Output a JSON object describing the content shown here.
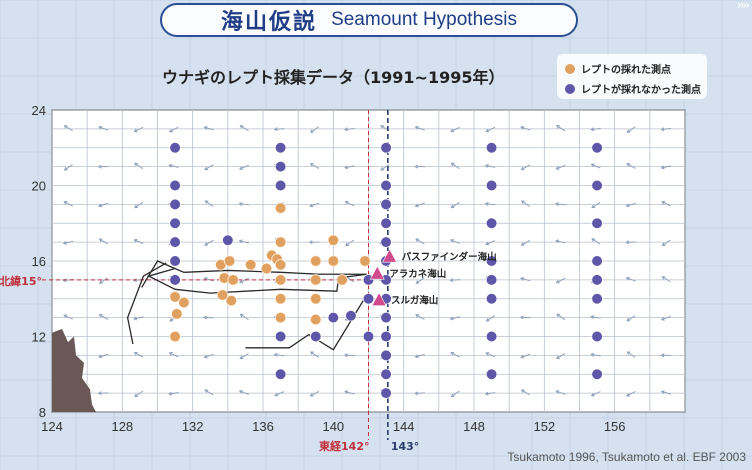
{
  "title": {
    "jp": "海山仮説",
    "en": "Seamount Hypothesis"
  },
  "chart_title": "ウナギのレプト採集データ（1991~1995年）",
  "legend": [
    {
      "label": "レプトの採れた測点",
      "color": "#e0a060"
    },
    {
      "label": "レプトが採れなかった測点",
      "color": "#5e56a8"
    }
  ],
  "credit": "Tsukamoto 1996, Tsukamoto et al. EBF 2003",
  "chart_data": {
    "type": "scatter",
    "xlim": [
      124,
      160
    ],
    "ylim": [
      8,
      24
    ],
    "xticks": [
      "124",
      "128",
      "132",
      "136",
      "140",
      "144",
      "148",
      "152",
      "156"
    ],
    "yticks": [
      "8",
      "12",
      "16",
      "20",
      "24"
    ],
    "ref_lines": {
      "lat": {
        "value": 15,
        "label": "北緯15°",
        "color": "#c0303a"
      },
      "lon142": {
        "value": 142,
        "label": "東経142°",
        "color": "#c0303a"
      },
      "lon143": {
        "value": 143.1,
        "label": "143°",
        "color": "#2a3a6a"
      }
    },
    "series": [
      {
        "name": "レプトの採れた測点",
        "color": "#e0a060",
        "points": [
          [
            131,
            14.1
          ],
          [
            131.5,
            13.8
          ],
          [
            131.1,
            13.2
          ],
          [
            131,
            12
          ],
          [
            133.6,
            15.8
          ],
          [
            134.1,
            16
          ],
          [
            133.8,
            15.1
          ],
          [
            134.3,
            15
          ],
          [
            133.7,
            14.2
          ],
          [
            134.2,
            13.9
          ],
          [
            135.3,
            15.8
          ],
          [
            136.2,
            15.6
          ],
          [
            136.5,
            16.3
          ],
          [
            136.8,
            16.1
          ],
          [
            137,
            15.8
          ],
          [
            137,
            18.8
          ],
          [
            137,
            17
          ],
          [
            137,
            15
          ],
          [
            137,
            14
          ],
          [
            137,
            13
          ],
          [
            139,
            16
          ],
          [
            139,
            15
          ],
          [
            139,
            14
          ],
          [
            139,
            12.9
          ],
          [
            139,
            12
          ],
          [
            140,
            17.1
          ],
          [
            140,
            16
          ],
          [
            140.5,
            15
          ],
          [
            141.8,
            16
          ]
        ]
      },
      {
        "name": "レプトが採れなかった測点",
        "color": "#5e56a8",
        "points": [
          [
            131,
            22
          ],
          [
            131,
            20
          ],
          [
            131,
            19
          ],
          [
            131,
            18
          ],
          [
            131,
            17
          ],
          [
            131,
            16
          ],
          [
            131,
            15
          ],
          [
            134,
            17.1
          ],
          [
            137,
            22
          ],
          [
            137,
            21
          ],
          [
            137,
            20
          ],
          [
            137,
            12
          ],
          [
            137,
            10
          ],
          [
            139,
            12
          ],
          [
            140,
            13
          ],
          [
            141,
            13.1
          ],
          [
            142,
            12
          ],
          [
            142,
            14
          ],
          [
            142,
            15
          ],
          [
            143,
            22
          ],
          [
            143,
            20
          ],
          [
            143,
            19
          ],
          [
            143,
            18
          ],
          [
            143,
            17
          ],
          [
            143,
            16
          ],
          [
            143,
            15
          ],
          [
            143,
            14
          ],
          [
            143,
            13
          ],
          [
            143,
            12
          ],
          [
            143,
            11
          ],
          [
            143,
            10
          ],
          [
            143,
            9
          ],
          [
            149,
            22
          ],
          [
            149,
            20
          ],
          [
            149,
            18
          ],
          [
            149,
            16
          ],
          [
            149,
            15
          ],
          [
            149,
            14
          ],
          [
            149,
            12
          ],
          [
            149,
            10
          ],
          [
            155,
            22
          ],
          [
            155,
            20
          ],
          [
            155,
            18
          ],
          [
            155,
            16
          ],
          [
            155,
            15
          ],
          [
            155,
            14
          ],
          [
            155,
            12
          ],
          [
            155,
            10
          ]
        ]
      }
    ],
    "seamounts": [
      {
        "name": "パスファインダー海山",
        "lon": 143.2,
        "lat": 16.2
      },
      {
        "name": "アラカネ海山",
        "lon": 142.5,
        "lat": 15.3
      },
      {
        "name": "スルガ海山",
        "lon": 142.6,
        "lat": 13.9
      }
    ]
  }
}
